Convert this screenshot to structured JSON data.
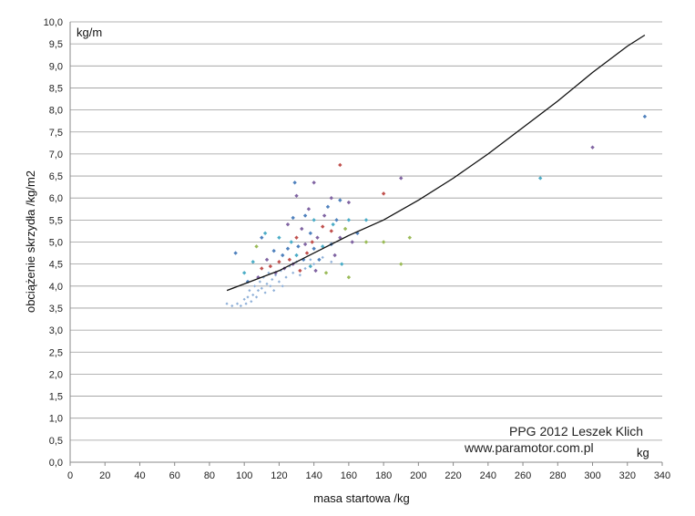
{
  "chart_data": {
    "type": "scatter",
    "xlabel": "masa startowa /kg",
    "ylabel": "obciążenie skrzydła /kg/m2",
    "xunit": "kg",
    "yunit": "kg/m",
    "xlim": [
      0,
      340
    ],
    "ylim": [
      0,
      10
    ],
    "x_ticks": [
      "0",
      "20",
      "40",
      "60",
      "80",
      "100",
      "120",
      "140",
      "160",
      "180",
      "200",
      "220",
      "240",
      "260",
      "280",
      "300",
      "320",
      "340"
    ],
    "y_ticks": [
      "0,0",
      "0,5",
      "1,0",
      "1,5",
      "2,0",
      "2,5",
      "3,0",
      "3,5",
      "4,0",
      "4,5",
      "5,0",
      "5,5",
      "6,0",
      "6,5",
      "7,0",
      "7,5",
      "8,0",
      "8,5",
      "9,0",
      "9,5",
      "10,0"
    ],
    "grid": "horizontal",
    "credit_lines": [
      "PPG 2012 Leszek Klich",
      "www.paramotor.com.pl"
    ],
    "colors": {
      "light": "#8fb0d8",
      "blue": "#4f81bd",
      "purple": "#8064a2",
      "red": "#c0504d",
      "green": "#9bbb59",
      "teal": "#4bacc6",
      "curve": "#111111"
    },
    "trend_curve": {
      "x": [
        90,
        100,
        120,
        140,
        160,
        180,
        200,
        220,
        240,
        260,
        280,
        300,
        320,
        330
      ],
      "y": [
        3.9,
        4.05,
        4.35,
        4.75,
        5.15,
        5.5,
        5.95,
        6.45,
        7.0,
        7.6,
        8.2,
        8.85,
        9.45,
        9.7
      ]
    },
    "points": [
      {
        "x": 90,
        "y": 3.6,
        "c": "light"
      },
      {
        "x": 93,
        "y": 3.55,
        "c": "light"
      },
      {
        "x": 96,
        "y": 3.6,
        "c": "light"
      },
      {
        "x": 98,
        "y": 3.55,
        "c": "light"
      },
      {
        "x": 100,
        "y": 3.7,
        "c": "light"
      },
      {
        "x": 101,
        "y": 3.6,
        "c": "light"
      },
      {
        "x": 102,
        "y": 3.75,
        "c": "light"
      },
      {
        "x": 103,
        "y": 3.9,
        "c": "light"
      },
      {
        "x": 104,
        "y": 3.65,
        "c": "light"
      },
      {
        "x": 105,
        "y": 3.8,
        "c": "light"
      },
      {
        "x": 106,
        "y": 4.0,
        "c": "light"
      },
      {
        "x": 107,
        "y": 3.75,
        "c": "light"
      },
      {
        "x": 108,
        "y": 3.9,
        "c": "light"
      },
      {
        "x": 109,
        "y": 4.1,
        "c": "light"
      },
      {
        "x": 110,
        "y": 3.95,
        "c": "light"
      },
      {
        "x": 111,
        "y": 4.2,
        "c": "light"
      },
      {
        "x": 112,
        "y": 3.85,
        "c": "light"
      },
      {
        "x": 113,
        "y": 4.05,
        "c": "light"
      },
      {
        "x": 114,
        "y": 4.3,
        "c": "light"
      },
      {
        "x": 115,
        "y": 4.0,
        "c": "light"
      },
      {
        "x": 116,
        "y": 4.15,
        "c": "light"
      },
      {
        "x": 117,
        "y": 3.9,
        "c": "light"
      },
      {
        "x": 118,
        "y": 4.25,
        "c": "light"
      },
      {
        "x": 120,
        "y": 4.1,
        "c": "light"
      },
      {
        "x": 121,
        "y": 4.35,
        "c": "light"
      },
      {
        "x": 122,
        "y": 4.0,
        "c": "light"
      },
      {
        "x": 124,
        "y": 4.2,
        "c": "light"
      },
      {
        "x": 126,
        "y": 4.45,
        "c": "light"
      },
      {
        "x": 128,
        "y": 4.3,
        "c": "light"
      },
      {
        "x": 130,
        "y": 4.55,
        "c": "light"
      },
      {
        "x": 132,
        "y": 4.25,
        "c": "light"
      },
      {
        "x": 135,
        "y": 4.4,
        "c": "light"
      },
      {
        "x": 138,
        "y": 4.6,
        "c": "light"
      },
      {
        "x": 140,
        "y": 4.5,
        "c": "light"
      },
      {
        "x": 145,
        "y": 4.65,
        "c": "light"
      },
      {
        "x": 150,
        "y": 4.55,
        "c": "light"
      },
      {
        "x": 95,
        "y": 4.75,
        "c": "blue"
      },
      {
        "x": 100,
        "y": 4.3,
        "c": "teal"
      },
      {
        "x": 102,
        "y": 4.1,
        "c": "blue"
      },
      {
        "x": 105,
        "y": 4.55,
        "c": "teal"
      },
      {
        "x": 107,
        "y": 4.9,
        "c": "green"
      },
      {
        "x": 108,
        "y": 4.2,
        "c": "purple"
      },
      {
        "x": 110,
        "y": 5.1,
        "c": "blue"
      },
      {
        "x": 110,
        "y": 4.4,
        "c": "red"
      },
      {
        "x": 112,
        "y": 5.2,
        "c": "teal"
      },
      {
        "x": 113,
        "y": 4.6,
        "c": "purple"
      },
      {
        "x": 115,
        "y": 4.45,
        "c": "red"
      },
      {
        "x": 117,
        "y": 4.8,
        "c": "blue"
      },
      {
        "x": 118,
        "y": 4.3,
        "c": "purple"
      },
      {
        "x": 120,
        "y": 5.1,
        "c": "teal"
      },
      {
        "x": 120,
        "y": 4.55,
        "c": "red"
      },
      {
        "x": 122,
        "y": 4.7,
        "c": "blue"
      },
      {
        "x": 123,
        "y": 4.4,
        "c": "purple"
      },
      {
        "x": 125,
        "y": 5.4,
        "c": "purple"
      },
      {
        "x": 125,
        "y": 4.85,
        "c": "blue"
      },
      {
        "x": 126,
        "y": 4.6,
        "c": "red"
      },
      {
        "x": 127,
        "y": 5.0,
        "c": "teal"
      },
      {
        "x": 128,
        "y": 5.55,
        "c": "blue"
      },
      {
        "x": 128,
        "y": 4.5,
        "c": "purple"
      },
      {
        "x": 129,
        "y": 6.35,
        "c": "blue"
      },
      {
        "x": 130,
        "y": 6.05,
        "c": "purple"
      },
      {
        "x": 130,
        "y": 5.1,
        "c": "red"
      },
      {
        "x": 130,
        "y": 4.7,
        "c": "teal"
      },
      {
        "x": 131,
        "y": 4.9,
        "c": "blue"
      },
      {
        "x": 132,
        "y": 4.35,
        "c": "red"
      },
      {
        "x": 133,
        "y": 5.3,
        "c": "purple"
      },
      {
        "x": 134,
        "y": 4.6,
        "c": "blue"
      },
      {
        "x": 135,
        "y": 5.6,
        "c": "blue"
      },
      {
        "x": 135,
        "y": 4.95,
        "c": "purple"
      },
      {
        "x": 136,
        "y": 4.75,
        "c": "red"
      },
      {
        "x": 137,
        "y": 5.75,
        "c": "purple"
      },
      {
        "x": 138,
        "y": 5.2,
        "c": "blue"
      },
      {
        "x": 138,
        "y": 4.45,
        "c": "teal"
      },
      {
        "x": 139,
        "y": 5.0,
        "c": "red"
      },
      {
        "x": 140,
        "y": 6.35,
        "c": "purple"
      },
      {
        "x": 140,
        "y": 5.5,
        "c": "teal"
      },
      {
        "x": 140,
        "y": 4.85,
        "c": "blue"
      },
      {
        "x": 141,
        "y": 4.35,
        "c": "purple"
      },
      {
        "x": 142,
        "y": 5.1,
        "c": "purple"
      },
      {
        "x": 143,
        "y": 4.6,
        "c": "blue"
      },
      {
        "x": 145,
        "y": 5.35,
        "c": "red"
      },
      {
        "x": 145,
        "y": 4.9,
        "c": "teal"
      },
      {
        "x": 146,
        "y": 5.6,
        "c": "purple"
      },
      {
        "x": 147,
        "y": 4.3,
        "c": "green"
      },
      {
        "x": 148,
        "y": 5.8,
        "c": "blue"
      },
      {
        "x": 150,
        "y": 6.0,
        "c": "purple"
      },
      {
        "x": 150,
        "y": 5.25,
        "c": "red"
      },
      {
        "x": 150,
        "y": 4.95,
        "c": "blue"
      },
      {
        "x": 151,
        "y": 5.4,
        "c": "teal"
      },
      {
        "x": 152,
        "y": 4.7,
        "c": "purple"
      },
      {
        "x": 153,
        "y": 5.5,
        "c": "blue"
      },
      {
        "x": 155,
        "y": 6.75,
        "c": "red"
      },
      {
        "x": 155,
        "y": 5.95,
        "c": "blue"
      },
      {
        "x": 155,
        "y": 5.1,
        "c": "purple"
      },
      {
        "x": 156,
        "y": 4.5,
        "c": "teal"
      },
      {
        "x": 158,
        "y": 5.3,
        "c": "green"
      },
      {
        "x": 160,
        "y": 5.9,
        "c": "purple"
      },
      {
        "x": 160,
        "y": 5.5,
        "c": "teal"
      },
      {
        "x": 160,
        "y": 4.2,
        "c": "green"
      },
      {
        "x": 162,
        "y": 5.0,
        "c": "purple"
      },
      {
        "x": 165,
        "y": 5.2,
        "c": "blue"
      },
      {
        "x": 170,
        "y": 5.5,
        "c": "teal"
      },
      {
        "x": 170,
        "y": 5.0,
        "c": "green"
      },
      {
        "x": 180,
        "y": 6.1,
        "c": "red"
      },
      {
        "x": 180,
        "y": 5.0,
        "c": "green"
      },
      {
        "x": 190,
        "y": 6.45,
        "c": "purple"
      },
      {
        "x": 190,
        "y": 4.5,
        "c": "green"
      },
      {
        "x": 195,
        "y": 5.1,
        "c": "green"
      },
      {
        "x": 270,
        "y": 6.45,
        "c": "teal"
      },
      {
        "x": 300,
        "y": 7.15,
        "c": "purple"
      },
      {
        "x": 330,
        "y": 7.85,
        "c": "blue"
      }
    ]
  }
}
